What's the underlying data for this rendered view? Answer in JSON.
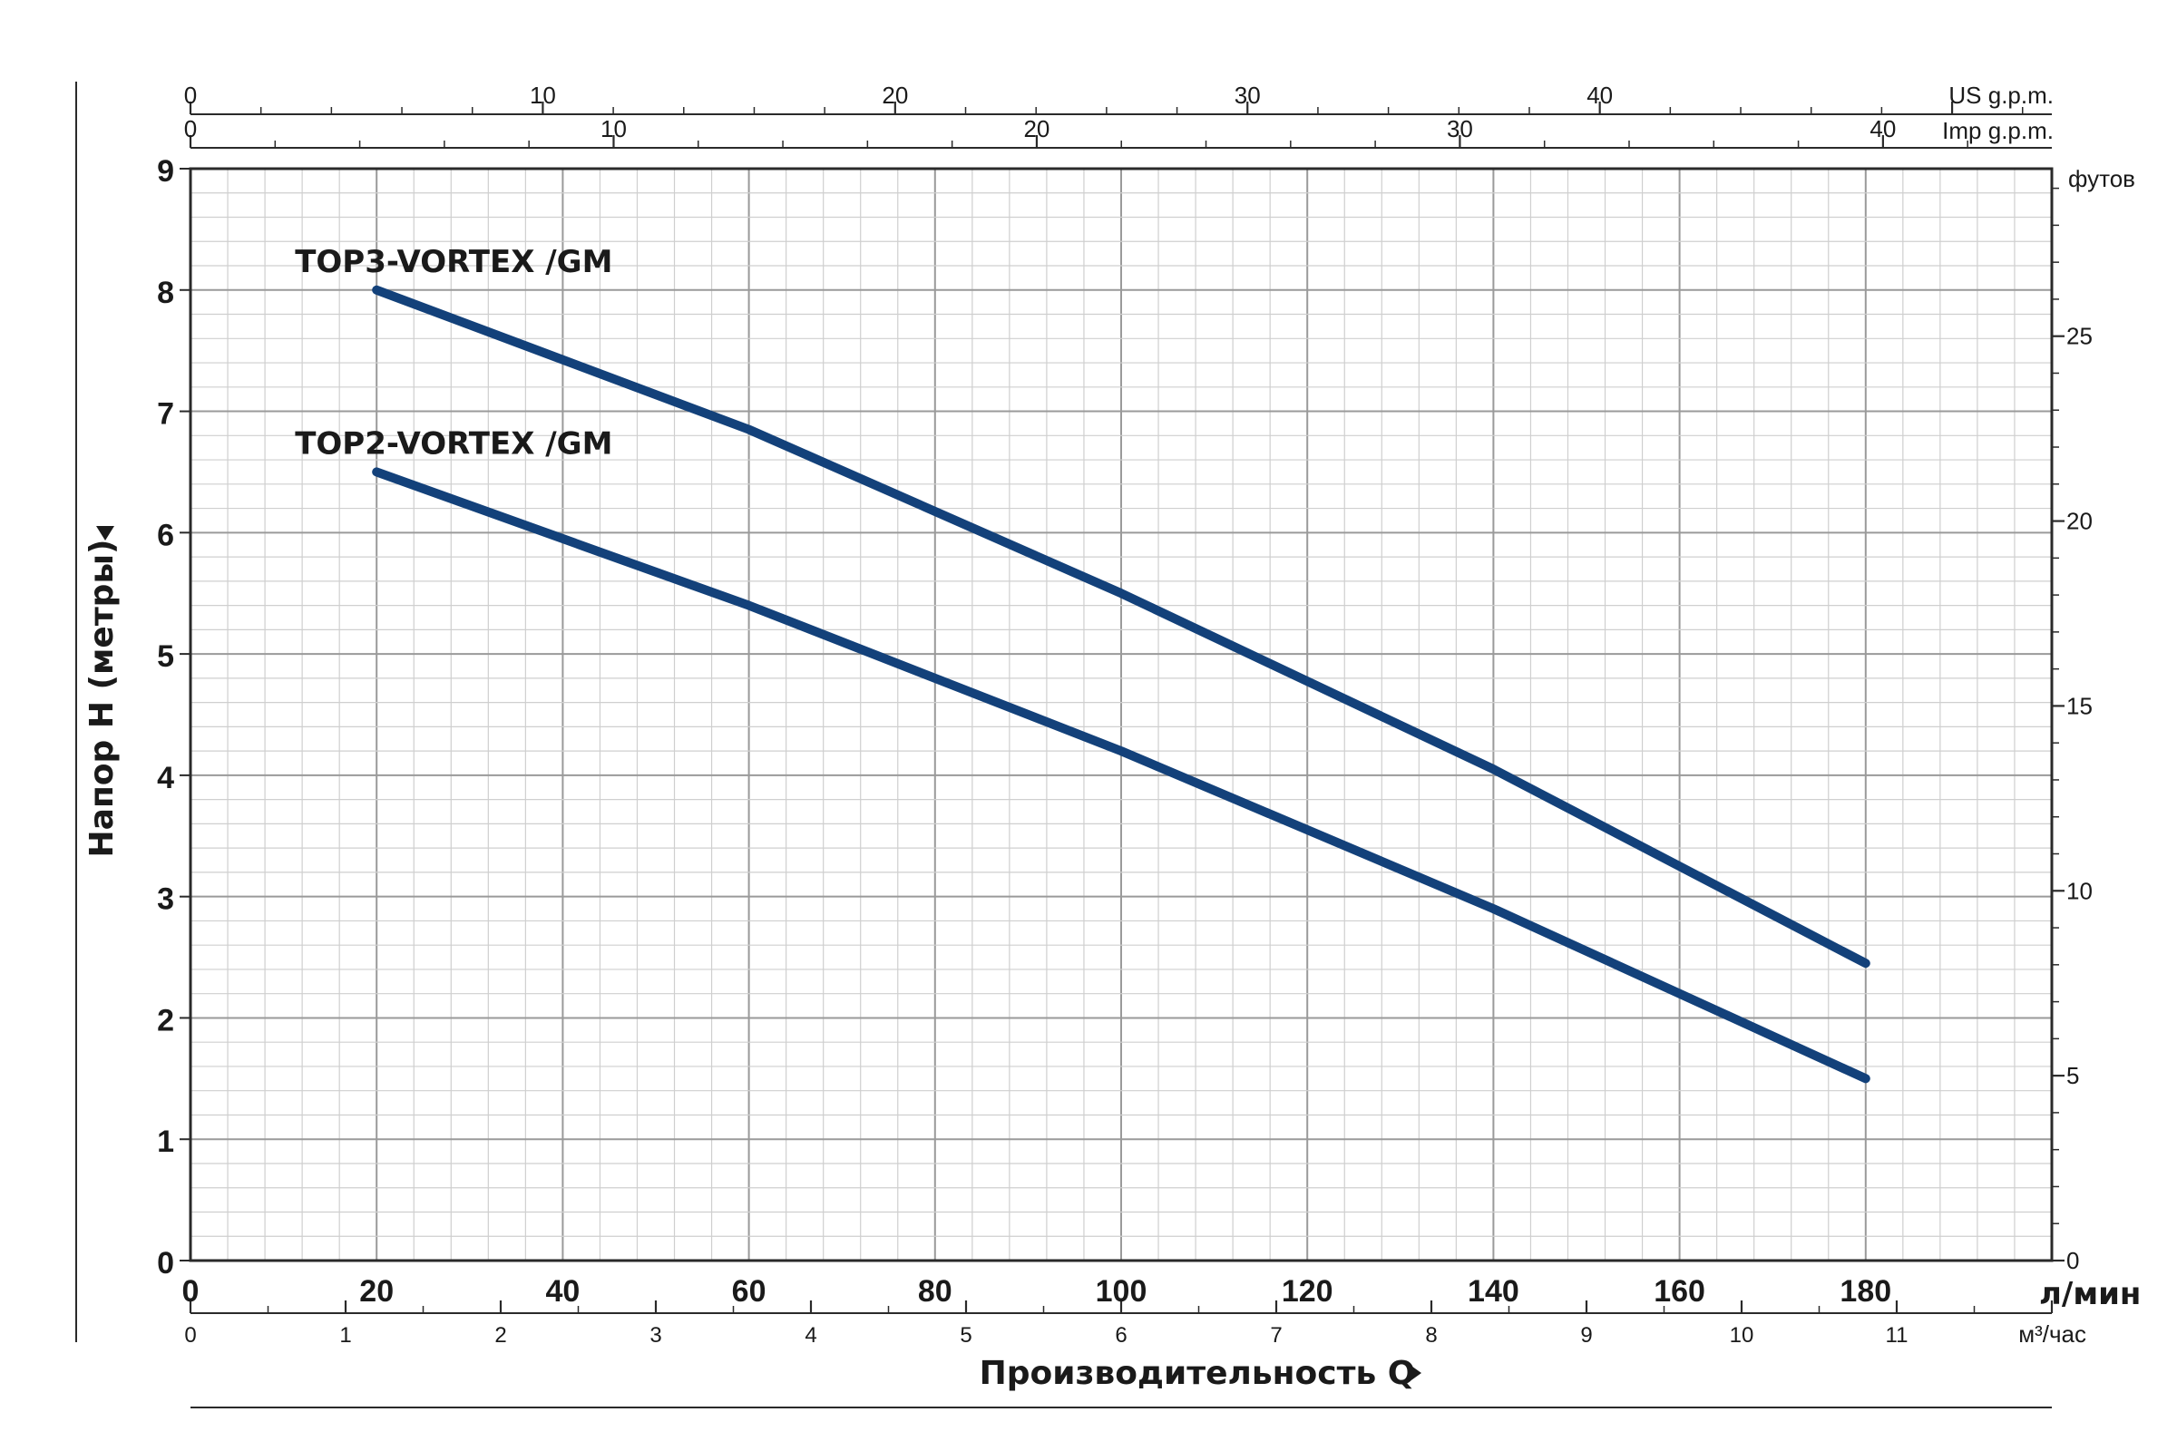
{
  "chart_data": {
    "type": "line",
    "title": "",
    "xlabel": "Производительность Q",
    "ylabel": "Напор H (метры)",
    "x_unit": "л/мин",
    "xlim": [
      0,
      200
    ],
    "ylim": [
      0,
      9
    ],
    "x_ticks": [
      0,
      20,
      40,
      60,
      80,
      100,
      120,
      140,
      160,
      180
    ],
    "y_ticks": [
      0,
      1,
      2,
      3,
      4,
      5,
      6,
      7,
      8,
      9
    ],
    "grid": true,
    "series": [
      {
        "name": "TOP3-VORTEX /GM",
        "x": [
          20,
          60,
          100,
          140,
          180
        ],
        "y": [
          8.0,
          6.85,
          5.5,
          4.05,
          2.45
        ],
        "color": "#13417a"
      },
      {
        "name": "TOP2-VORTEX /GM",
        "x": [
          20,
          60,
          100,
          140,
          180
        ],
        "y": [
          6.5,
          5.4,
          4.2,
          2.9,
          1.5
        ],
        "color": "#13417a"
      }
    ],
    "secondary_axes": {
      "us_gpm": {
        "label": "US g.p.m.",
        "ticks": [
          0,
          10,
          20,
          30,
          40
        ],
        "max": 52.83
      },
      "imp_gpm": {
        "label": "Imp g.p.m.",
        "ticks": [
          0,
          10,
          20,
          30,
          40
        ],
        "max": 43.99
      },
      "feet": {
        "label": "футов",
        "ticks": [
          0,
          5,
          10,
          15,
          20,
          25
        ],
        "max": 29.53
      },
      "m3h": {
        "label": "м³/час",
        "ticks": [
          0,
          1,
          2,
          3,
          4,
          5,
          6,
          7,
          8,
          9,
          10,
          11
        ],
        "max": 12
      }
    }
  }
}
